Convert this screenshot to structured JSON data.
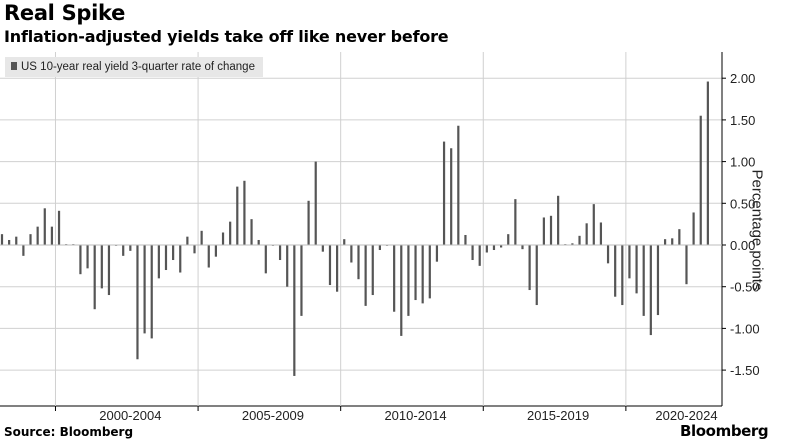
{
  "header": {
    "title": "Real Spike",
    "subtitle": "Inflation-adjusted yields take off like never before"
  },
  "footer": {
    "source": "Source: Bloomberg",
    "brand": "Bloomberg"
  },
  "chart_data": {
    "type": "bar",
    "title": "Real Spike",
    "subtitle": "Inflation-adjusted yields take off like never before",
    "legend": [
      "US 10-year real yield 3-quarter rate of change"
    ],
    "legend_position": "top-left",
    "ylabel": "Percentage points",
    "xlabel": "",
    "ylim": [
      -1.8,
      2.3
    ],
    "y_ticks": [
      2.0,
      1.5,
      1.0,
      0.5,
      0.0,
      -0.5,
      -1.0,
      -1.5
    ],
    "y_tick_labels": [
      "2.00",
      "1.50",
      "1.00",
      "0.50",
      "0.00",
      "-0.50",
      "-1.00",
      "-1.50"
    ],
    "x_tick_labels": [
      "2000-2004",
      "2005-2009",
      "2010-2014",
      "2015-2019",
      "2020-2024"
    ],
    "grid": true,
    "color": "#555555",
    "series": [
      {
        "name": "US 10-year real yield 3-quarter rate of change",
        "values": [
          0.13,
          0.06,
          0.1,
          -0.13,
          0.13,
          0.22,
          0.44,
          0.22,
          0.41,
          0.01,
          0.01,
          -0.35,
          -0.28,
          -0.77,
          -0.52,
          -0.6,
          0.0,
          -0.13,
          -0.07,
          -1.37,
          -1.06,
          -1.12,
          -0.4,
          -0.3,
          -0.18,
          -0.33,
          0.1,
          -0.1,
          0.17,
          -0.27,
          -0.14,
          0.15,
          0.28,
          0.7,
          0.77,
          0.31,
          0.06,
          -0.34,
          0.0,
          -0.18,
          -0.5,
          -1.57,
          -0.85,
          0.53,
          1.0,
          -0.08,
          -0.48,
          -0.56,
          0.07,
          -0.21,
          -0.41,
          -0.73,
          -0.6,
          -0.06,
          0.0,
          -0.8,
          -1.09,
          -0.85,
          -0.66,
          -0.7,
          -0.64,
          -0.2,
          1.24,
          1.16,
          1.43,
          0.12,
          -0.18,
          -0.25,
          -0.09,
          -0.06,
          -0.03,
          0.13,
          0.55,
          -0.05,
          -0.54,
          -0.72,
          0.33,
          0.35,
          0.59,
          0.01,
          0.02,
          0.11,
          0.26,
          0.49,
          0.27,
          -0.22,
          -0.62,
          -0.72,
          -0.4,
          -0.58,
          -0.85,
          -1.08,
          -0.84,
          0.07,
          0.08,
          0.19,
          -0.47,
          0.39,
          1.55,
          1.96
        ]
      }
    ]
  }
}
